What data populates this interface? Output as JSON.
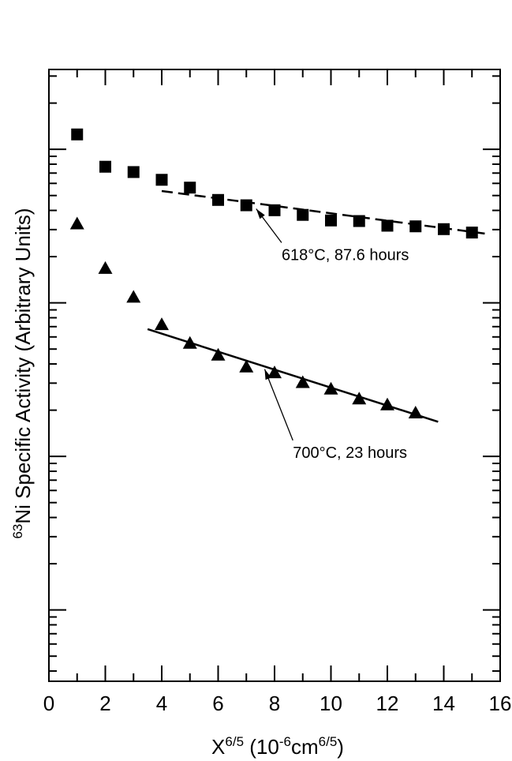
{
  "chart_data": {
    "type": "scatter",
    "xlabel": {
      "base": "X",
      "base_sup": "6/5",
      "unit_open": " (10",
      "unit_sup": "-6",
      "unit_mid": "cm",
      "unit_sup2": "6/5",
      "unit_close": ")"
    },
    "ylabel": {
      "sup": "63",
      "text": "Ni Specific Activity (Arbitrary Units)"
    },
    "xlim": [
      0,
      16
    ],
    "xticks": [
      0,
      2,
      4,
      6,
      8,
      10,
      12,
      14,
      16
    ],
    "xtick_labels": [
      "0",
      "2",
      "4",
      "6",
      "8",
      "10",
      "12",
      "14",
      "16"
    ],
    "yscale": "log",
    "y_decades": 4,
    "ytick_labels_shown": false,
    "grid": false,
    "series": [
      {
        "marker": "square",
        "fit_style": "dashed",
        "x": [
          1,
          2,
          3,
          4,
          5,
          6,
          7,
          8,
          9,
          10,
          11,
          12,
          13,
          14,
          15
        ],
        "y": [
          1.25,
          0.77,
          0.711,
          0.633,
          0.563,
          0.468,
          0.432,
          0.401,
          0.374,
          0.344,
          0.341,
          0.318,
          0.315,
          0.302,
          0.287
        ],
        "fit": {
          "x": [
            4,
            15.5
          ],
          "y": [
            0.535,
            0.282
          ]
        }
      },
      {
        "marker": "triangle",
        "fit_style": "solid",
        "x": [
          1,
          2,
          3,
          4,
          5,
          6,
          7,
          8,
          9,
          10,
          11,
          12,
          13
        ],
        "y": [
          0.327,
          0.168,
          0.109,
          0.0722,
          0.0546,
          0.0457,
          0.0383,
          0.0351,
          0.0303,
          0.0275,
          0.0237,
          0.0217,
          0.0192
        ],
        "fit": {
          "x": [
            3.5,
            13.8
          ],
          "y": [
            0.0674,
            0.0168
          ]
        }
      }
    ],
    "annotations": [
      {
        "text": "618°C, 87.6 hours",
        "text_x": 8.25,
        "text_y": 0.19,
        "arrow_to": [
          7.35,
          0.41
        ]
      },
      {
        "text": "700°C, 23 hours",
        "text_x": 8.65,
        "text_y": 0.0098,
        "arrow_to": [
          7.65,
          0.037
        ]
      }
    ]
  }
}
